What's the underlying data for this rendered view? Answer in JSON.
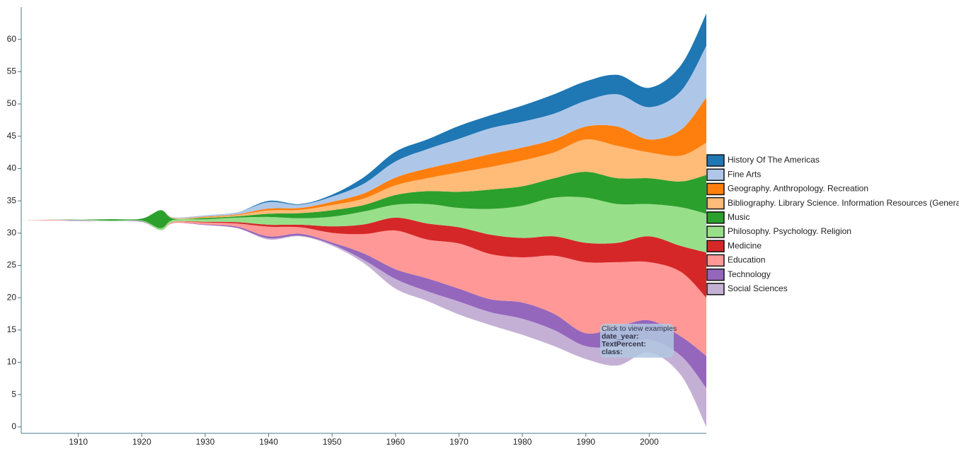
{
  "chart_data": {
    "type": "streamgraph",
    "x": [
      1901,
      1905,
      1910,
      1915,
      1920,
      1923,
      1925,
      1930,
      1935,
      1940,
      1945,
      1950,
      1955,
      1960,
      1965,
      1970,
      1975,
      1980,
      1985,
      1990,
      1995,
      2000,
      2005,
      2009
    ],
    "series": [
      {
        "name": "History Of The Americas",
        "color": "#1f77b4",
        "values": [
          0,
          0,
          0,
          0,
          0,
          0,
          0,
          0,
          0,
          0.2,
          0.1,
          0.3,
          1,
          1.5,
          1.5,
          2,
          2,
          2.5,
          3,
          3,
          3,
          3,
          4,
          5
        ]
      },
      {
        "name": "Fine Arts",
        "color": "#aec7e8",
        "values": [
          0,
          0,
          0,
          0,
          0,
          0,
          0.1,
          0.2,
          0.3,
          1,
          0.5,
          0.8,
          1.5,
          2.5,
          3,
          3.5,
          4,
          4,
          4,
          4,
          5,
          5,
          6,
          8
        ]
      },
      {
        "name": "Geography. Anthropology. Recreation",
        "color": "#ff7f0e",
        "values": [
          0,
          0,
          0,
          0,
          0,
          0,
          0,
          0.1,
          0.1,
          0.3,
          0.3,
          0.5,
          0.8,
          1.2,
          1.5,
          1.7,
          2,
          2,
          2,
          2,
          3,
          2,
          4,
          7
        ]
      },
      {
        "name": "Bibliography. Library Science. Information Resources (General)",
        "color": "#ffbb78",
        "values": [
          0,
          0,
          0,
          0,
          0,
          0,
          0.1,
          0.1,
          0.2,
          0.5,
          0.5,
          0.8,
          1,
          1.5,
          2,
          3,
          3.5,
          4,
          4,
          5,
          5,
          4,
          4,
          5
        ]
      },
      {
        "name": "Music",
        "color": "#2ca02c",
        "values": [
          0,
          0,
          0,
          0.2,
          0.3,
          2.8,
          0.2,
          0.2,
          0.2,
          0.5,
          0.8,
          1,
          1,
          1.5,
          2,
          2.5,
          3,
          3,
          3,
          4,
          4,
          4,
          4,
          6
        ]
      },
      {
        "name": "Philosophy. Psychology. Religion",
        "color": "#98df8a",
        "values": [
          0,
          0,
          0.1,
          0.1,
          0.1,
          0.3,
          0.3,
          0.4,
          0.7,
          1.2,
          1,
          1.5,
          2,
          2,
          3,
          3,
          4,
          5,
          6,
          7,
          6,
          5,
          6,
          6
        ]
      },
      {
        "name": "Medicine",
        "color": "#d62728",
        "values": [
          0,
          0,
          0,
          0,
          0,
          0,
          0,
          0.1,
          0.2,
          0.3,
          0.4,
          1,
          1.5,
          2,
          2.5,
          2.5,
          3,
          3,
          3,
          3,
          3,
          4,
          4,
          7
        ]
      },
      {
        "name": "Education",
        "color": "#ff9896",
        "values": [
          0,
          0.1,
          0,
          0,
          0,
          0,
          0.2,
          0.3,
          0.5,
          1.5,
          1,
          1.5,
          3,
          6,
          6,
          7,
          7,
          7,
          9,
          11,
          10,
          9,
          10,
          9
        ]
      },
      {
        "name": "Technology",
        "color": "#9467bd",
        "values": [
          0,
          0,
          0.1,
          0,
          0.1,
          0,
          0,
          0.1,
          0.2,
          0.3,
          0.3,
          0.3,
          1,
          1.5,
          2,
          2,
          2,
          2.5,
          2.5,
          2,
          3,
          3,
          3,
          5
        ]
      },
      {
        "name": "Social Sciences",
        "color": "#c5b0d5",
        "values": [
          0,
          0,
          0,
          0,
          0,
          0,
          0,
          0,
          0,
          0.2,
          0.1,
          0.2,
          0.5,
          1.5,
          1.5,
          2,
          2,
          2.5,
          2.5,
          2,
          3,
          2,
          3,
          6
        ]
      }
    ],
    "xlim": [
      1901,
      2009
    ],
    "xticks": [
      1910,
      1920,
      1930,
      1940,
      1950,
      1960,
      1970,
      1980,
      1990,
      2000
    ],
    "ylim": [
      -1,
      65
    ],
    "yticks": [
      0,
      5,
      10,
      15,
      20,
      25,
      30,
      35,
      40,
      45,
      50,
      55,
      60
    ],
    "offset": "silhouette",
    "tooltip": {
      "hint": "Click to view examples",
      "fields": [
        "date_year:",
        "TextPercent:",
        "class:"
      ]
    }
  }
}
